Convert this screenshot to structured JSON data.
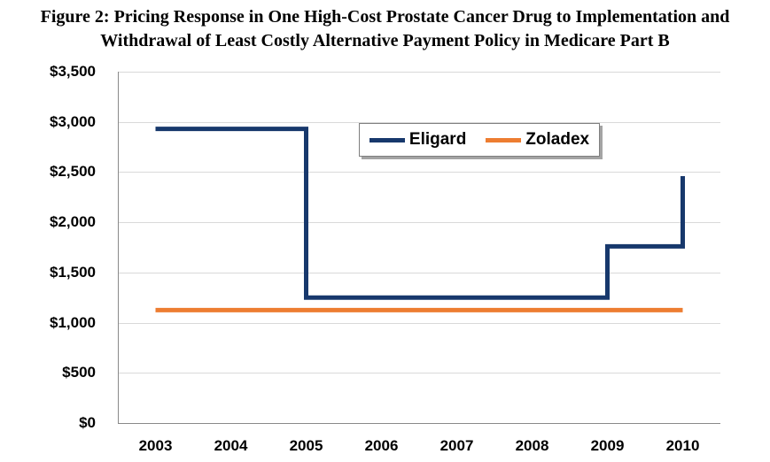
{
  "title": {
    "line1": "Figure 2: Pricing Response in One High-Cost Prostate Cancer Drug to Implementation and",
    "line2": "Withdrawal of Least Costly Alternative Payment Policy in Medicare Part B"
  },
  "colors": {
    "eligard_line": "#17386C",
    "zoladex_line": "#ED7D31",
    "gridline": "#D9D9D9",
    "axis_line": "#898989",
    "text": "#000000",
    "legend_border": "#7F7F7F",
    "background": "#FFFFFF"
  },
  "legend": {
    "items": [
      {
        "label": "Eligard",
        "color": "#17386C"
      },
      {
        "label": "Zoladex",
        "color": "#ED7D31"
      }
    ]
  },
  "chart_data": {
    "type": "line",
    "title": "Figure 2: Pricing Response in One High-Cost Prostate Cancer Drug to Implementation and Withdrawal of Least Costly Alternative Payment Policy in Medicare Part B",
    "xlabel": "",
    "ylabel": "",
    "x": [
      2003,
      2004,
      2005,
      2006,
      2007,
      2008,
      2009,
      2010
    ],
    "ylim": [
      0,
      3500
    ],
    "grid": true,
    "legend_position": "top-center-inside",
    "y_ticks": [
      {
        "value": 0,
        "label": "$0"
      },
      {
        "value": 500,
        "label": "$500"
      },
      {
        "value": 1000,
        "label": "$1,000"
      },
      {
        "value": 1500,
        "label": "$1,500"
      },
      {
        "value": 2000,
        "label": "$2,000"
      },
      {
        "value": 2500,
        "label": "$2,500"
      },
      {
        "value": 3000,
        "label": "$3,000"
      },
      {
        "value": 3500,
        "label": "$3,500"
      }
    ],
    "series": [
      {
        "name": "Eligard",
        "color": "#17386C",
        "points": [
          [
            2003,
            2930
          ],
          [
            2005,
            2930
          ],
          [
            2005,
            1250
          ],
          [
            2009,
            1250
          ],
          [
            2009,
            1760
          ],
          [
            2010,
            1760
          ],
          [
            2010,
            2460
          ]
        ]
      },
      {
        "name": "Zoladex",
        "color": "#ED7D31",
        "points": [
          [
            2003,
            1125
          ],
          [
            2010,
            1125
          ]
        ]
      }
    ]
  }
}
